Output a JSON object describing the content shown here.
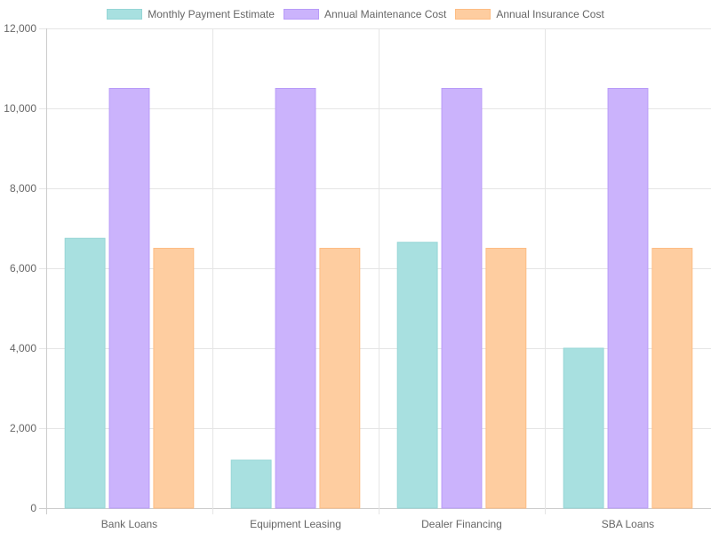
{
  "chart_data": {
    "type": "bar",
    "categories": [
      "Bank Loans",
      "Equipment Leasing",
      "Dealer Financing",
      "SBA Loans"
    ],
    "series": [
      {
        "name": "Monthly Payment Estimate",
        "values": [
          6750,
          1200,
          6650,
          4000
        ],
        "color": "#a8e0e0",
        "border": "#96d6d6"
      },
      {
        "name": "Annual Maintenance Cost",
        "values": [
          10500,
          10500,
          10500,
          10500
        ],
        "color": "#cbb3fc",
        "border": "#b99cf8"
      },
      {
        "name": "Annual Insurance Cost",
        "values": [
          6500,
          6500,
          6500,
          6500
        ],
        "color": "#fecda0",
        "border": "#fdbd84"
      }
    ],
    "ylim": [
      0,
      12000
    ],
    "yticks": [
      0,
      2000,
      4000,
      6000,
      8000,
      10000,
      12000
    ],
    "ytick_labels": [
      "0",
      "2,000",
      "4,000",
      "6,000",
      "8,000",
      "10,000",
      "12,000"
    ],
    "grid": true,
    "legend_position": "top"
  }
}
